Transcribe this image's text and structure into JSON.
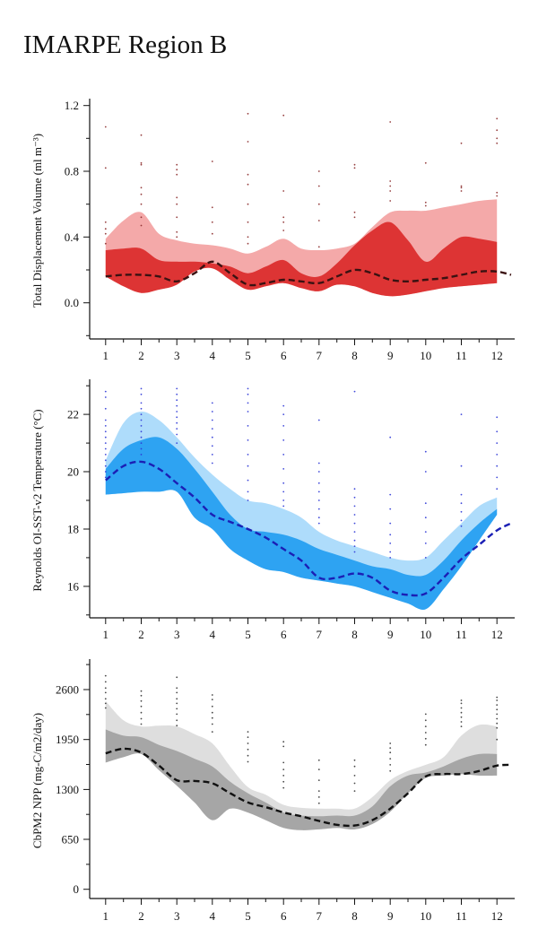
{
  "title": "IMARPE Region B",
  "chart_data": [
    {
      "type": "area",
      "ylabel": "Total Displacement Volume (ml m⁻³)",
      "x_ticks": [
        1,
        2,
        3,
        4,
        5,
        6,
        7,
        8,
        9,
        10,
        11,
        12
      ],
      "xlim": [
        0.55,
        12.5
      ],
      "ylim": [
        -0.22,
        1.22
      ],
      "y_ticks": [
        0.0,
        0.4,
        0.8,
        1.2
      ],
      "y_tick_labels": [
        "0.0",
        "0.4",
        "0.8",
        "1.2"
      ],
      "colors": {
        "outer": "#f4a9a9",
        "inner": "#dd3434",
        "median": "#3a1212",
        "dots": "#8b2a2a"
      },
      "series": [
        {
          "role": "outer-band",
          "x": [
            1,
            1.5,
            2,
            2.5,
            3,
            3.5,
            4,
            4.5,
            5,
            5.5,
            6,
            6.5,
            7,
            7.5,
            8,
            8.5,
            9,
            9.5,
            10,
            10.5,
            11,
            11.5,
            12
          ],
          "upper": [
            0.39,
            0.5,
            0.55,
            0.42,
            0.38,
            0.36,
            0.35,
            0.33,
            0.3,
            0.34,
            0.39,
            0.33,
            0.32,
            0.33,
            0.36,
            0.46,
            0.55,
            0.56,
            0.56,
            0.58,
            0.6,
            0.62,
            0.63
          ],
          "lower": [
            0.16,
            0.1,
            0.06,
            0.08,
            0.11,
            0.19,
            0.21,
            0.14,
            0.08,
            0.1,
            0.12,
            0.09,
            0.07,
            0.11,
            0.1,
            0.06,
            0.04,
            0.05,
            0.07,
            0.09,
            0.1,
            0.11,
            0.12
          ]
        },
        {
          "role": "inner-band",
          "x": [
            1,
            1.5,
            2,
            2.5,
            3,
            3.5,
            4,
            4.5,
            5,
            5.5,
            6,
            6.5,
            7,
            7.5,
            8,
            8.5,
            9,
            9.5,
            10,
            10.5,
            11,
            11.5,
            12
          ],
          "upper": [
            0.32,
            0.33,
            0.33,
            0.26,
            0.25,
            0.25,
            0.24,
            0.22,
            0.18,
            0.22,
            0.26,
            0.18,
            0.16,
            0.24,
            0.35,
            0.44,
            0.49,
            0.38,
            0.25,
            0.33,
            0.4,
            0.39,
            0.37
          ],
          "lower": [
            0.16,
            0.1,
            0.06,
            0.08,
            0.11,
            0.19,
            0.21,
            0.14,
            0.08,
            0.1,
            0.12,
            0.09,
            0.07,
            0.11,
            0.1,
            0.06,
            0.04,
            0.05,
            0.07,
            0.09,
            0.1,
            0.11,
            0.12
          ]
        },
        {
          "role": "median",
          "x": [
            1,
            1.5,
            2,
            2.5,
            3,
            3.5,
            4,
            4.5,
            5,
            5.5,
            6,
            6.5,
            7,
            7.5,
            8,
            8.5,
            9,
            9.5,
            10,
            10.5,
            11,
            11.5,
            12,
            12.4
          ],
          "y": [
            0.16,
            0.17,
            0.17,
            0.16,
            0.13,
            0.18,
            0.25,
            0.18,
            0.11,
            0.12,
            0.14,
            0.13,
            0.12,
            0.16,
            0.2,
            0.18,
            0.14,
            0.13,
            0.14,
            0.15,
            0.17,
            0.19,
            0.19,
            0.17
          ]
        }
      ],
      "dots": {
        "1": [
          0.82,
          1.07,
          0.49,
          0.45,
          0.42,
          0.36
        ],
        "2": [
          0.85,
          0.84,
          0.7,
          0.66,
          1.02,
          0.6,
          0.52,
          0.47
        ],
        "3": [
          0.84,
          0.81,
          0.78,
          0.64,
          0.6,
          0.52,
          0.43,
          0.4
        ],
        "4": [
          0.86,
          0.58,
          0.49,
          0.42
        ],
        "5": [
          1.15,
          0.98,
          0.78,
          0.72,
          0.6,
          0.49,
          0.4,
          0.36
        ],
        "6": [
          1.14,
          0.68,
          0.52,
          0.49,
          0.44
        ],
        "7": [
          0.8,
          0.71,
          0.6,
          0.5,
          0.34
        ],
        "8": [
          0.84,
          0.82,
          0.55,
          0.52
        ],
        "9": [
          1.1,
          0.74,
          0.71,
          0.68,
          0.62
        ],
        "10": [
          0.85,
          0.61,
          0.59
        ],
        "11": [
          0.97,
          0.71,
          0.7,
          0.68
        ],
        "12": [
          1.12,
          1.05,
          1.0,
          0.97,
          0.67,
          0.65
        ]
      }
    },
    {
      "type": "area",
      "ylabel": "Reynolds OI-SST-v2 Temperature (°C)",
      "x_ticks": [
        1,
        2,
        3,
        4,
        5,
        6,
        7,
        8,
        9,
        10,
        11,
        12
      ],
      "xlim": [
        0.55,
        12.5
      ],
      "ylim": [
        14.9,
        23.1
      ],
      "y_ticks": [
        16,
        18,
        20,
        22
      ],
      "y_tick_labels": [
        "16",
        "18",
        "20",
        "22"
      ],
      "colors": {
        "outer": "#aedcfb",
        "inner": "#2ea3f2",
        "median": "#1b1fb5",
        "dots": "#2b35d6"
      },
      "series": [
        {
          "role": "outer-band",
          "x": [
            1,
            1.5,
            2,
            2.5,
            3,
            3.5,
            4,
            4.5,
            5,
            5.5,
            6,
            6.5,
            7,
            7.5,
            8,
            8.5,
            9,
            9.5,
            10,
            10.5,
            11,
            11.5,
            12
          ],
          "upper": [
            20.4,
            21.7,
            22.1,
            21.8,
            21.2,
            20.5,
            19.9,
            19.4,
            19.0,
            18.9,
            18.7,
            18.4,
            17.9,
            17.6,
            17.4,
            17.2,
            17.0,
            16.9,
            17.0,
            17.6,
            18.2,
            18.8,
            19.1
          ],
          "lower": [
            19.2,
            19.25,
            19.3,
            19.3,
            19.3,
            18.4,
            18.0,
            17.3,
            16.9,
            16.6,
            16.5,
            16.3,
            16.2,
            16.1,
            16.0,
            15.8,
            15.6,
            15.4,
            15.2,
            15.9,
            16.7,
            17.6,
            18.5
          ]
        },
        {
          "role": "inner-band",
          "x": [
            1,
            1.5,
            2,
            2.5,
            3,
            3.5,
            4,
            4.5,
            5,
            5.5,
            6,
            6.5,
            7,
            7.5,
            8,
            8.5,
            9,
            9.5,
            10,
            10.5,
            11,
            11.5,
            12
          ],
          "upper": [
            20.1,
            20.8,
            21.1,
            21.2,
            20.8,
            20.1,
            19.3,
            18.5,
            18.0,
            17.9,
            17.8,
            17.6,
            17.3,
            17.1,
            16.9,
            16.7,
            16.6,
            16.4,
            16.4,
            16.9,
            17.6,
            18.2,
            18.7
          ],
          "lower": [
            19.2,
            19.25,
            19.3,
            19.3,
            19.3,
            18.4,
            18.0,
            17.3,
            16.9,
            16.6,
            16.5,
            16.3,
            16.2,
            16.1,
            16.0,
            15.8,
            15.6,
            15.4,
            15.2,
            15.9,
            16.7,
            17.6,
            18.5
          ]
        },
        {
          "role": "median",
          "x": [
            1,
            1.5,
            2,
            2.5,
            3,
            3.5,
            4,
            4.5,
            5,
            5.5,
            6,
            6.5,
            7,
            7.5,
            8,
            8.5,
            9,
            9.5,
            10,
            10.5,
            11,
            11.5,
            12,
            12.4
          ],
          "y": [
            19.7,
            20.2,
            20.35,
            20.1,
            19.6,
            19.1,
            18.5,
            18.25,
            18.0,
            17.7,
            17.3,
            16.9,
            16.3,
            16.3,
            16.45,
            16.3,
            15.85,
            15.7,
            15.75,
            16.3,
            16.95,
            17.45,
            17.95,
            18.2
          ]
        }
      ],
      "dots": {
        "1": [
          22.8,
          22.6,
          22.2,
          21.8,
          21.6,
          21.4,
          21.2,
          21.0,
          20.8,
          20.6,
          20.4,
          20.2,
          20.0,
          19.8
        ],
        "2": [
          22.9,
          22.7,
          22.4,
          22.2,
          22.0,
          21.8,
          21.6,
          21.4,
          21.2,
          21.0,
          20.8,
          20.6
        ],
        "3": [
          22.9,
          22.7,
          22.5,
          22.3,
          22.1,
          21.9,
          21.7,
          21.5,
          21.3,
          21.0
        ],
        "4": [
          22.4,
          22.1,
          21.8,
          21.5,
          21.2,
          20.9,
          20.6,
          20.3
        ],
        "5": [
          22.9,
          22.7,
          22.4,
          22.1,
          21.6,
          21.1,
          20.6,
          20.2,
          19.7,
          19.3,
          19.0
        ],
        "6": [
          22.3,
          22.0,
          21.6,
          21.1,
          20.6,
          20.1,
          19.6,
          19.3,
          19.0,
          18.8
        ],
        "7": [
          21.8,
          20.3,
          20.0,
          19.6,
          19.3,
          19.0,
          18.7,
          18.4,
          18.2
        ],
        "8": [
          22.8,
          19.4,
          19.1,
          18.8,
          18.5,
          18.2,
          17.9,
          17.6,
          17.4,
          17.2
        ],
        "9": [
          21.2,
          19.2,
          18.7,
          18.2,
          17.8,
          17.5,
          17.2,
          17.0
        ],
        "10": [
          20.7,
          20.0,
          18.9,
          18.4,
          17.9,
          17.5,
          17.0
        ],
        "11": [
          22.0,
          20.2,
          19.2,
          18.9,
          18.6,
          18.3,
          18.1
        ],
        "12": [
          21.9,
          21.4,
          21.0,
          20.6,
          20.2,
          19.8,
          19.4
        ]
      }
    },
    {
      "type": "area",
      "ylabel": "CbPM2 NPP (mg-C/m2/day)",
      "x_ticks": [
        1,
        2,
        3,
        4,
        5,
        6,
        7,
        8,
        9,
        10,
        11,
        12
      ],
      "xlim": [
        0.55,
        12.5
      ],
      "ylim": [
        -120,
        2950
      ],
      "y_ticks": [
        0,
        650,
        1300,
        1950,
        2600
      ],
      "y_tick_labels": [
        "0",
        "650",
        "1300",
        "1950",
        "2600"
      ],
      "colors": {
        "outer": "#dedede",
        "inner": "#a6a6a6",
        "median": "#111111",
        "dots": "#333333"
      },
      "series": [
        {
          "role": "outer-band",
          "x": [
            1,
            1.5,
            2,
            2.5,
            3,
            3.5,
            4,
            4.5,
            5,
            5.5,
            6,
            6.5,
            7,
            7.5,
            8,
            8.5,
            9,
            9.5,
            10,
            10.5,
            11,
            11.5,
            12
          ],
          "upper": [
            2450,
            2200,
            2120,
            2130,
            2120,
            2020,
            1900,
            1600,
            1330,
            1230,
            1100,
            1060,
            1050,
            1050,
            1050,
            1200,
            1420,
            1540,
            1620,
            1720,
            2000,
            2140,
            2120
          ],
          "lower": [
            1650,
            1720,
            1760,
            1550,
            1350,
            1130,
            900,
            1050,
            1000,
            900,
            800,
            770,
            780,
            800,
            780,
            850,
            1010,
            1250,
            1450,
            1480,
            1500,
            1480,
            1480
          ]
        },
        {
          "role": "inner-band",
          "x": [
            1,
            1.5,
            2,
            2.5,
            3,
            3.5,
            4,
            4.5,
            5,
            5.5,
            6,
            6.5,
            7,
            7.5,
            8,
            8.5,
            9,
            9.5,
            10,
            10.5,
            11,
            11.5,
            12
          ],
          "upper": [
            2080,
            2000,
            1980,
            1880,
            1800,
            1700,
            1600,
            1400,
            1250,
            1130,
            1000,
            960,
            950,
            960,
            960,
            1080,
            1340,
            1480,
            1520,
            1600,
            1700,
            1760,
            1760
          ],
          "lower": [
            1650,
            1720,
            1760,
            1550,
            1350,
            1130,
            900,
            1050,
            1000,
            900,
            800,
            770,
            780,
            800,
            780,
            850,
            1010,
            1250,
            1450,
            1480,
            1500,
            1480,
            1480
          ]
        },
        {
          "role": "median",
          "x": [
            1,
            1.5,
            2,
            2.5,
            3,
            3.5,
            4,
            4.5,
            5,
            5.5,
            6,
            6.5,
            7,
            7.5,
            8,
            8.5,
            9,
            9.5,
            10,
            10.5,
            11,
            11.5,
            12,
            12.4
          ],
          "y": [
            1770,
            1830,
            1780,
            1610,
            1420,
            1410,
            1380,
            1250,
            1130,
            1070,
            1000,
            950,
            890,
            840,
            830,
            900,
            1050,
            1250,
            1470,
            1500,
            1500,
            1540,
            1610,
            1620
          ]
        }
      ],
      "dots": {
        "1": [
          2780,
          2700,
          2620,
          2560,
          2480,
          2420,
          2360
        ],
        "2": [
          2580,
          2520,
          2450,
          2380,
          2300,
          2220,
          2150
        ],
        "3": [
          2760,
          2620,
          2560,
          2480,
          2420,
          2350,
          2280,
          2200,
          2130
        ],
        "4": [
          2530,
          2470,
          2380,
          2300,
          2230,
          2150,
          2050
        ],
        "5": [
          2050,
          1980,
          1900,
          1820,
          1740,
          1660
        ],
        "6": [
          1920,
          1860,
          1650,
          1560,
          1480,
          1400,
          1320
        ],
        "7": [
          1680,
          1560,
          1420,
          1280,
          1200,
          1120
        ],
        "8": [
          1680,
          1600,
          1480,
          1380,
          1280
        ],
        "9": [
          1900,
          1840,
          1780,
          1700,
          1620,
          1540
        ],
        "10": [
          2280,
          2200,
          2120,
          2040,
          1960,
          1880
        ],
        "11": [
          2460,
          2420,
          2360,
          2300,
          2240,
          2180,
          2120
        ],
        "12": [
          2500,
          2460,
          2400,
          2340,
          2280,
          2220,
          2160,
          2100,
          1950
        ]
      }
    }
  ]
}
